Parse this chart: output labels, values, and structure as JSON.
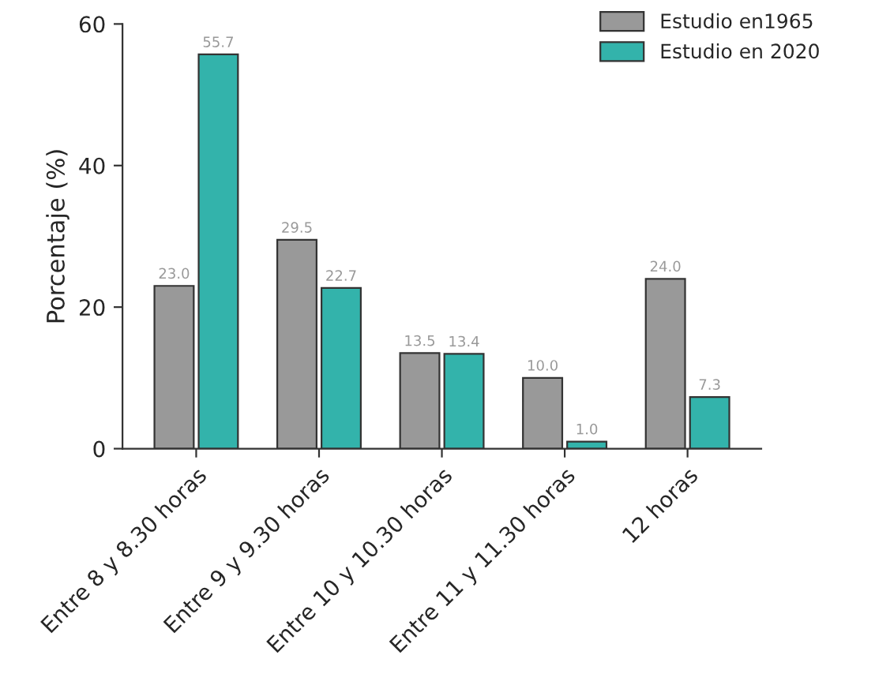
{
  "chart_data": {
    "type": "bar",
    "ylabel": "Porcentaje (%)",
    "categories": [
      "Entre 8 y 8.30 horas",
      "Entre 9 y 9.30 horas",
      "Entre 10 y 10.30 horas",
      "Entre 11 y 11.30 horas",
      "12 horas"
    ],
    "series": [
      {
        "name": "Estudio en1965",
        "color": "#999999",
        "values": [
          23.0,
          29.5,
          13.5,
          10.0,
          24.0
        ],
        "value_labels": [
          "23.0",
          "29.5",
          "13.5",
          "10.0",
          "24.0"
        ]
      },
      {
        "name": "Estudio en 2020",
        "color": "#33b3ab",
        "values": [
          55.7,
          22.7,
          13.4,
          1.0,
          7.3
        ],
        "value_labels": [
          "55.7",
          "22.7",
          "13.4",
          "1.0",
          "7.3"
        ]
      }
    ],
    "ylim": [
      0,
      60
    ],
    "yticks": [
      0,
      20,
      40,
      60
    ],
    "legend": "top right",
    "grid": false
  }
}
